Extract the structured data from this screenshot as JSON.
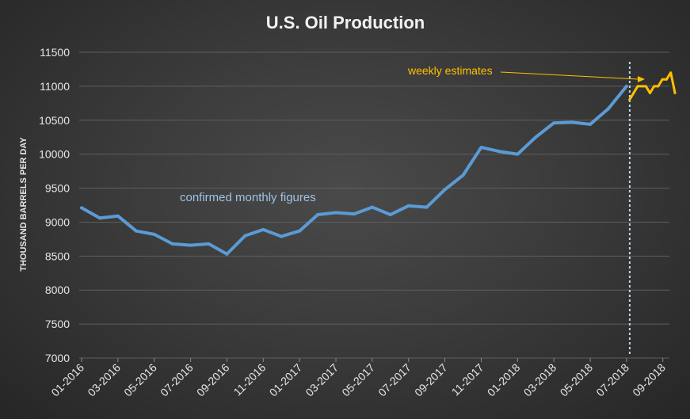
{
  "chart_data": {
    "type": "line",
    "title": "U.S. Oil Production",
    "ylabel": "THOUSAND BARRELS PER DAY",
    "xlabel": "",
    "ylim": [
      7000,
      11500
    ],
    "yticks": [
      7000,
      7500,
      8000,
      8500,
      9000,
      9500,
      10000,
      10500,
      11000,
      11500
    ],
    "grid": true,
    "legend": "none",
    "xtick_labels": [
      "01-2016",
      "03-2016",
      "05-2016",
      "07-2016",
      "09-2016",
      "11-2016",
      "01-2017",
      "03-2017",
      "05-2017",
      "07-2017",
      "09-2017",
      "11-2017",
      "01-2018",
      "03-2018",
      "05-2018",
      "07-2018",
      "09-2018"
    ],
    "monthly": {
      "label": "confirmed monthly figures",
      "color": "#5b9bd5",
      "x": [
        "01-2016",
        "02-2016",
        "03-2016",
        "04-2016",
        "05-2016",
        "06-2016",
        "07-2016",
        "08-2016",
        "09-2016",
        "10-2016",
        "11-2016",
        "12-2016",
        "01-2017",
        "02-2017",
        "03-2017",
        "04-2017",
        "05-2017",
        "06-2017",
        "07-2017",
        "08-2017",
        "09-2017",
        "10-2017",
        "11-2017",
        "12-2017",
        "01-2018",
        "02-2018",
        "03-2018",
        "04-2018",
        "05-2018",
        "06-2018",
        "07-2018"
      ],
      "values": [
        9210,
        9060,
        9090,
        8870,
        8820,
        8680,
        8660,
        8680,
        8530,
        8800,
        8890,
        8790,
        8870,
        9110,
        9140,
        9120,
        9220,
        9110,
        9240,
        9220,
        9480,
        9690,
        10100,
        10040,
        10000,
        10250,
        10460,
        10470,
        10440,
        10670,
        11000
      ]
    },
    "weekly": {
      "label": "weekly estimates",
      "color": "#ffc000",
      "x": [
        "2018-07-06",
        "2018-07-13",
        "2018-07-20",
        "2018-07-27",
        "2018-08-03",
        "2018-08-10",
        "2018-08-17",
        "2018-08-24",
        "2018-08-31",
        "2018-09-07",
        "2018-09-14",
        "2018-09-21"
      ],
      "values": [
        10800,
        10900,
        11000,
        11000,
        11000,
        10900,
        11000,
        11000,
        11100,
        11100,
        11200,
        10900
      ]
    },
    "divider_x": "07-2018",
    "annotations": [
      {
        "text": "confirmed monthly figures",
        "color": "#9dc3e6"
      },
      {
        "text": "weekly estimates",
        "color": "#ffc000"
      }
    ]
  }
}
